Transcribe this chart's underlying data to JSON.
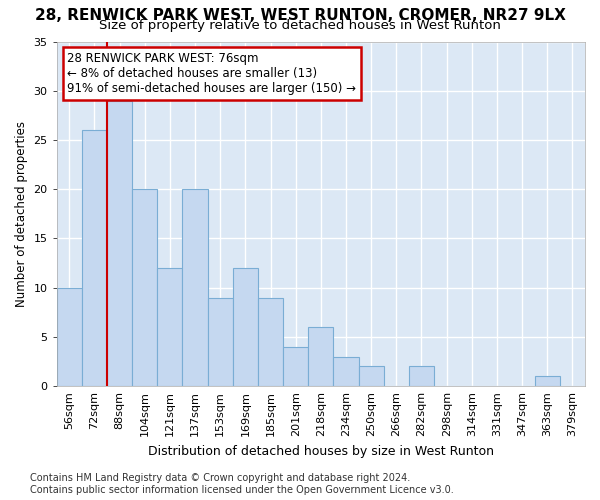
{
  "title1": "28, RENWICK PARK WEST, WEST RUNTON, CROMER, NR27 9LX",
  "title2": "Size of property relative to detached houses in West Runton",
  "xlabel": "Distribution of detached houses by size in West Runton",
  "ylabel": "Number of detached properties",
  "categories": [
    "56sqm",
    "72sqm",
    "88sqm",
    "104sqm",
    "121sqm",
    "137sqm",
    "153sqm",
    "169sqm",
    "185sqm",
    "201sqm",
    "218sqm",
    "234sqm",
    "250sqm",
    "266sqm",
    "282sqm",
    "298sqm",
    "314sqm",
    "331sqm",
    "347sqm",
    "363sqm",
    "379sqm"
  ],
  "values": [
    10,
    26,
    29,
    20,
    12,
    20,
    9,
    12,
    9,
    4,
    6,
    3,
    2,
    0,
    2,
    0,
    0,
    0,
    0,
    1,
    0
  ],
  "bar_color": "#c5d8f0",
  "bar_edge_color": "#7aadd4",
  "red_line_x": 1.5,
  "annotation_line1": "28 RENWICK PARK WEST: 76sqm",
  "annotation_line2": "← 8% of detached houses are smaller (13)",
  "annotation_line3": "91% of semi-detached houses are larger (150) →",
  "annotation_box_color": "#ffffff",
  "annotation_box_edge_color": "#cc0000",
  "ylim": [
    0,
    35
  ],
  "yticks": [
    0,
    5,
    10,
    15,
    20,
    25,
    30,
    35
  ],
  "plot_bg_color": "#dce8f5",
  "grid_color": "#ffffff",
  "footer_line1": "Contains HM Land Registry data © Crown copyright and database right 2024.",
  "footer_line2": "Contains public sector information licensed under the Open Government Licence v3.0.",
  "title1_fontsize": 11,
  "title2_fontsize": 9.5,
  "xlabel_fontsize": 9,
  "ylabel_fontsize": 8.5,
  "tick_fontsize": 8,
  "annotation_fontsize": 8.5,
  "footer_fontsize": 7
}
